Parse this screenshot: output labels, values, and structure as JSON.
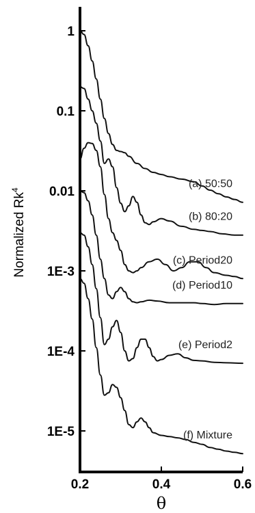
{
  "chart_data": {
    "type": "line",
    "xlabel": "θ",
    "ylabel": "Normalized Rk",
    "ylabel_superscript": "4",
    "y_scale": "log",
    "xlim": [
      0.2,
      0.6
    ],
    "ylim": [
      5e-06,
      1.5
    ],
    "x_ticks": [
      "0.2",
      "0.4",
      "0.6"
    ],
    "y_ticks": [
      {
        "value": 1,
        "label": "1"
      },
      {
        "value": 0.1,
        "label": "0.1"
      },
      {
        "value": 0.01,
        "label": "0.01"
      },
      {
        "value": 0.001,
        "label": "1E-3"
      },
      {
        "value": 0.0001,
        "label": "1E-4"
      },
      {
        "value": 1e-05,
        "label": "1E-5"
      }
    ],
    "series": [
      {
        "name": "(a) 50:50",
        "color": "#111111",
        "points": [
          [
            0.2,
            1.0
          ],
          [
            0.21,
            0.9
          ],
          [
            0.22,
            0.65
          ],
          [
            0.23,
            0.42
          ],
          [
            0.24,
            0.25
          ],
          [
            0.25,
            0.14
          ],
          [
            0.26,
            0.08
          ],
          [
            0.27,
            0.052
          ],
          [
            0.28,
            0.038
          ],
          [
            0.29,
            0.032
          ],
          [
            0.3,
            0.031
          ],
          [
            0.31,
            0.03
          ],
          [
            0.32,
            0.027
          ],
          [
            0.34,
            0.022
          ],
          [
            0.36,
            0.019
          ],
          [
            0.38,
            0.017
          ],
          [
            0.4,
            0.016
          ],
          [
            0.42,
            0.015
          ],
          [
            0.45,
            0.014
          ],
          [
            0.48,
            0.013
          ],
          [
            0.5,
            0.0115
          ],
          [
            0.52,
            0.0102
          ],
          [
            0.54,
            0.0092
          ],
          [
            0.56,
            0.0084
          ],
          [
            0.58,
            0.0078
          ],
          [
            0.6,
            0.0072
          ]
        ]
      },
      {
        "name": "(b) 80:20",
        "color": "#111111",
        "points": [
          [
            0.2,
            0.2
          ],
          [
            0.21,
            0.19
          ],
          [
            0.22,
            0.14
          ],
          [
            0.23,
            0.1
          ],
          [
            0.24,
            0.07
          ],
          [
            0.25,
            0.042
          ],
          [
            0.26,
            0.022
          ],
          [
            0.27,
            0.025
          ],
          [
            0.28,
            0.02
          ],
          [
            0.29,
            0.011
          ],
          [
            0.3,
            0.007
          ],
          [
            0.31,
            0.0055
          ],
          [
            0.32,
            0.0065
          ],
          [
            0.33,
            0.0085
          ],
          [
            0.34,
            0.0072
          ],
          [
            0.35,
            0.005
          ],
          [
            0.36,
            0.004
          ],
          [
            0.37,
            0.0038
          ],
          [
            0.38,
            0.0041
          ],
          [
            0.4,
            0.0045
          ],
          [
            0.42,
            0.0042
          ],
          [
            0.45,
            0.0036
          ],
          [
            0.48,
            0.0033
          ],
          [
            0.5,
            0.0032
          ],
          [
            0.52,
            0.0031
          ],
          [
            0.55,
            0.0029
          ],
          [
            0.58,
            0.0028
          ],
          [
            0.6,
            0.0028
          ]
        ]
      },
      {
        "name": "(c) Period20",
        "color": "#111111",
        "points": [
          [
            0.2,
            0.025
          ],
          [
            0.21,
            0.034
          ],
          [
            0.22,
            0.04
          ],
          [
            0.23,
            0.039
          ],
          [
            0.24,
            0.032
          ],
          [
            0.25,
            0.02
          ],
          [
            0.26,
            0.009
          ],
          [
            0.27,
            0.0045
          ],
          [
            0.28,
            0.003
          ],
          [
            0.29,
            0.0024
          ],
          [
            0.3,
            0.0018
          ],
          [
            0.31,
            0.0012
          ],
          [
            0.32,
            0.001
          ],
          [
            0.33,
            0.00095
          ],
          [
            0.34,
            0.001
          ],
          [
            0.35,
            0.0011
          ],
          [
            0.37,
            0.0013
          ],
          [
            0.39,
            0.0014
          ],
          [
            0.41,
            0.0012
          ],
          [
            0.43,
            0.001
          ],
          [
            0.45,
            0.0011
          ],
          [
            0.47,
            0.0013
          ],
          [
            0.49,
            0.0013
          ],
          [
            0.51,
            0.0011
          ],
          [
            0.53,
            0.00095
          ],
          [
            0.56,
            0.00088
          ],
          [
            0.58,
            0.00085
          ],
          [
            0.6,
            0.0008
          ]
        ]
      },
      {
        "name": "(d) Period10",
        "color": "#111111",
        "points": [
          [
            0.2,
            0.01
          ],
          [
            0.21,
            0.0095
          ],
          [
            0.22,
            0.0075
          ],
          [
            0.23,
            0.005
          ],
          [
            0.24,
            0.0028
          ],
          [
            0.25,
            0.0014
          ],
          [
            0.26,
            0.0008
          ],
          [
            0.27,
            0.0005
          ],
          [
            0.28,
            0.00045
          ],
          [
            0.29,
            0.00055
          ],
          [
            0.3,
            0.00062
          ],
          [
            0.31,
            0.00055
          ],
          [
            0.32,
            0.00045
          ],
          [
            0.33,
            0.00041
          ],
          [
            0.34,
            0.0004
          ],
          [
            0.35,
            0.00041
          ],
          [
            0.37,
            0.00043
          ],
          [
            0.39,
            0.00042
          ],
          [
            0.42,
            0.0004
          ],
          [
            0.45,
            0.0004
          ],
          [
            0.48,
            0.0004
          ],
          [
            0.5,
            0.00039
          ],
          [
            0.53,
            0.00038
          ],
          [
            0.56,
            0.00039
          ],
          [
            0.6,
            0.00039
          ]
        ]
      },
      {
        "name": "(e) Period2",
        "color": "#111111",
        "points": [
          [
            0.2,
            0.003
          ],
          [
            0.21,
            0.0028
          ],
          [
            0.22,
            0.002
          ],
          [
            0.23,
            0.0012
          ],
          [
            0.24,
            0.0006
          ],
          [
            0.25,
            0.00026
          ],
          [
            0.26,
            0.00012
          ],
          [
            0.27,
            0.00014
          ],
          [
            0.28,
            0.0002
          ],
          [
            0.29,
            0.00024
          ],
          [
            0.3,
            0.00017
          ],
          [
            0.31,
            0.0001
          ],
          [
            0.32,
            7.5e-05
          ],
          [
            0.33,
            8e-05
          ],
          [
            0.34,
            0.00011
          ],
          [
            0.35,
            0.00014
          ],
          [
            0.36,
            0.00014
          ],
          [
            0.37,
            0.00011
          ],
          [
            0.38,
            8.5e-05
          ],
          [
            0.39,
            7.5e-05
          ],
          [
            0.4,
            7.8e-05
          ],
          [
            0.42,
            8.8e-05
          ],
          [
            0.44,
            9.2e-05
          ],
          [
            0.46,
            8.2e-05
          ],
          [
            0.48,
            7.6e-05
          ],
          [
            0.5,
            7.5e-05
          ],
          [
            0.53,
            7.2e-05
          ],
          [
            0.56,
            7.1e-05
          ],
          [
            0.6,
            7e-05
          ]
        ]
      },
      {
        "name": "(f) Mixture",
        "color": "#111111",
        "points": [
          [
            0.2,
            0.0008
          ],
          [
            0.21,
            0.0007
          ],
          [
            0.22,
            0.00045
          ],
          [
            0.23,
            0.00025
          ],
          [
            0.24,
            0.00011
          ],
          [
            0.25,
            5e-05
          ],
          [
            0.26,
            2.8e-05
          ],
          [
            0.27,
            3e-05
          ],
          [
            0.28,
            3.8e-05
          ],
          [
            0.29,
            3.5e-05
          ],
          [
            0.3,
            2.6e-05
          ],
          [
            0.31,
            1.8e-05
          ],
          [
            0.32,
            1.2e-05
          ],
          [
            0.33,
            1.1e-05
          ],
          [
            0.34,
            1.3e-05
          ],
          [
            0.35,
            1.45e-05
          ],
          [
            0.36,
            1.3e-05
          ],
          [
            0.37,
            1.1e-05
          ],
          [
            0.38,
            9.5e-06
          ],
          [
            0.4,
            8.8e-06
          ],
          [
            0.42,
            8.5e-06
          ],
          [
            0.44,
            8.2e-06
          ],
          [
            0.46,
            7.8e-06
          ],
          [
            0.48,
            7.2e-06
          ],
          [
            0.5,
            6.8e-06
          ],
          [
            0.52,
            6.2e-06
          ],
          [
            0.54,
            5.9e-06
          ],
          [
            0.56,
            5.6e-06
          ],
          [
            0.58,
            5.4e-06
          ],
          [
            0.6,
            5.2e-06
          ]
        ]
      }
    ]
  }
}
